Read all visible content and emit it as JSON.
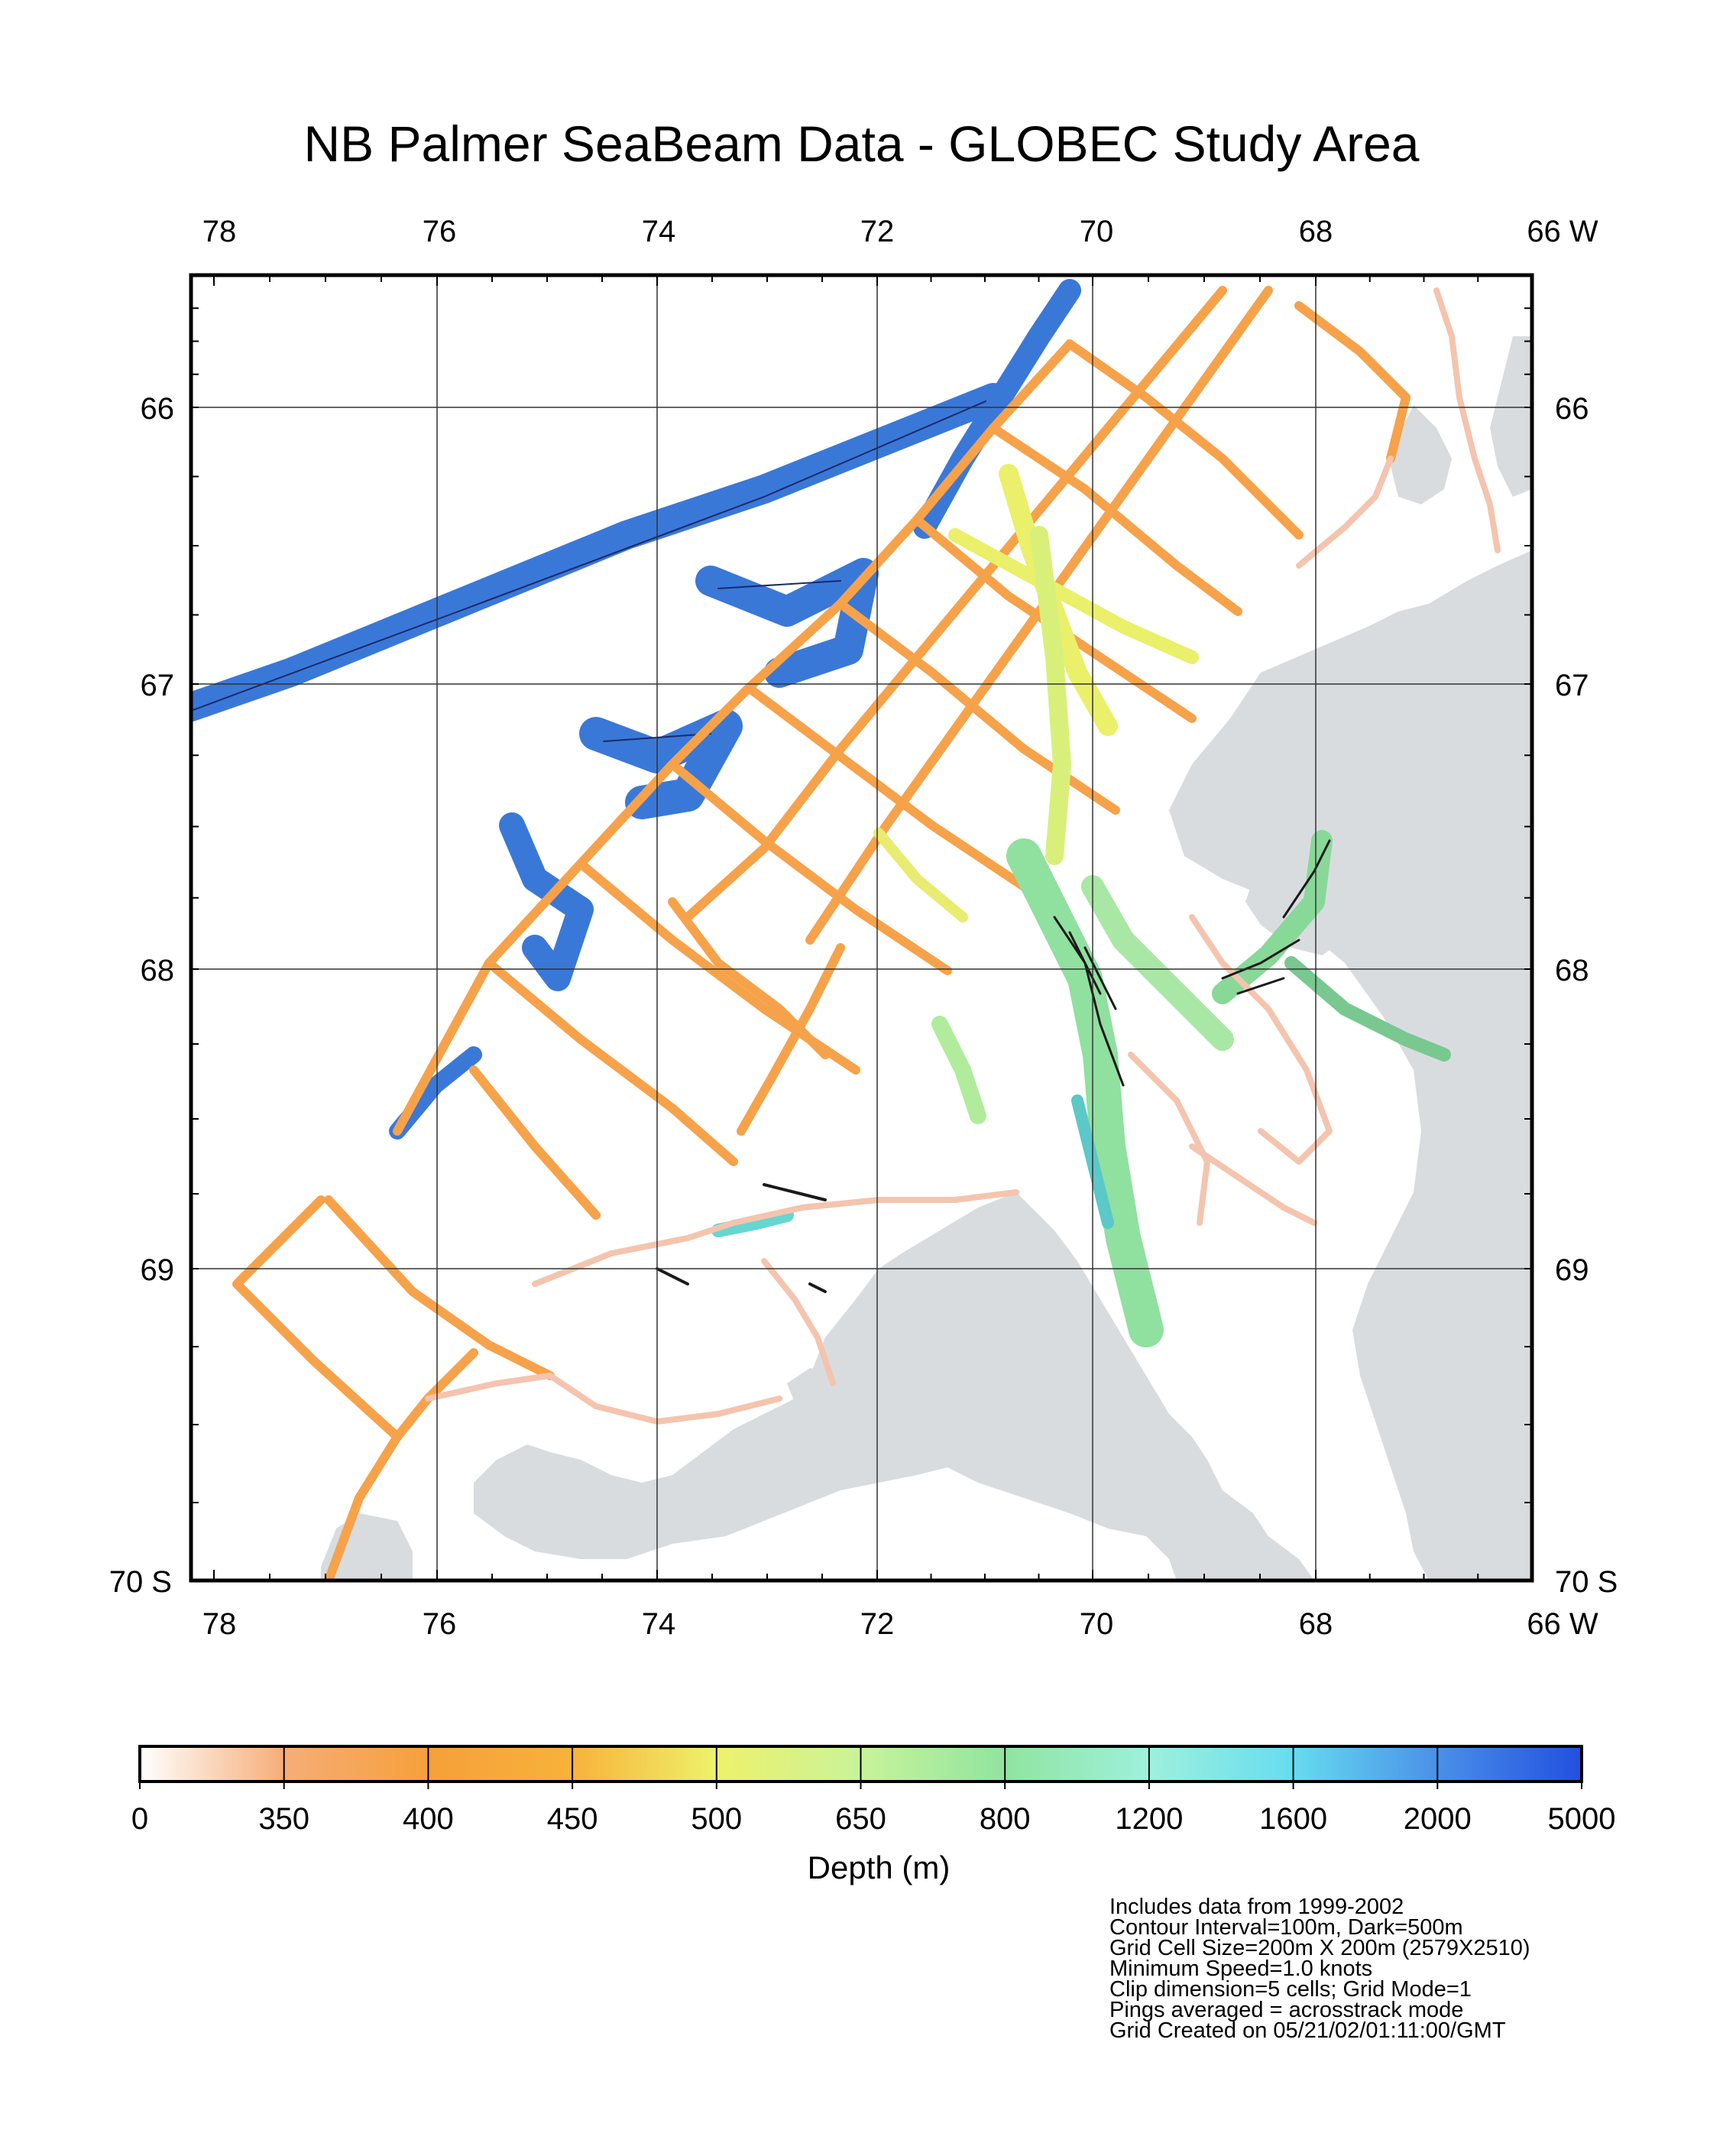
{
  "title": "NB Palmer SeaBeam Data - GLOBEC Study Area",
  "map": {
    "lon_ticks_top": [
      "78",
      "76",
      "74",
      "72",
      "70",
      "68",
      "66 W"
    ],
    "lon_ticks_bottom": [
      "78",
      "76",
      "74",
      "72",
      "70",
      "68",
      "66 W"
    ],
    "lat_ticks_left": [
      "66",
      "67",
      "68",
      "69",
      "70 S"
    ],
    "lat_ticks_right": [
      "66",
      "67",
      "68",
      "69",
      "70 S"
    ],
    "lon_range": [
      78.4,
      66
    ],
    "lat_range": [
      65.5,
      70
    ],
    "land_color": "#d9dcdf",
    "deep_color": "#3a78d8"
  },
  "colorbar": {
    "labels": [
      "0",
      "350",
      "400",
      "450",
      "500",
      "650",
      "800",
      "1200",
      "1600",
      "2000",
      "5000"
    ],
    "colors": [
      "#ffffff",
      "#f6ad78",
      "#f6a03a",
      "#f8b23a",
      "#eef26a",
      "#c9f39a",
      "#90e4a0",
      "#9ef0dc",
      "#66dcf0",
      "#4a90e8",
      "#2250e0"
    ],
    "title": "Depth (m)"
  },
  "notes": [
    "Includes data from 1999-2002",
    "Contour Interval=100m, Dark=500m",
    "Grid Cell Size=200m X 200m (2579X2510)",
    "Minimum Speed=1.0 knots",
    "Clip dimension=5 cells; Grid Mode=1",
    "Pings averaged = acrosstrack mode",
    "Grid Created on 05/21/02/01:11:00/GMT"
  ]
}
